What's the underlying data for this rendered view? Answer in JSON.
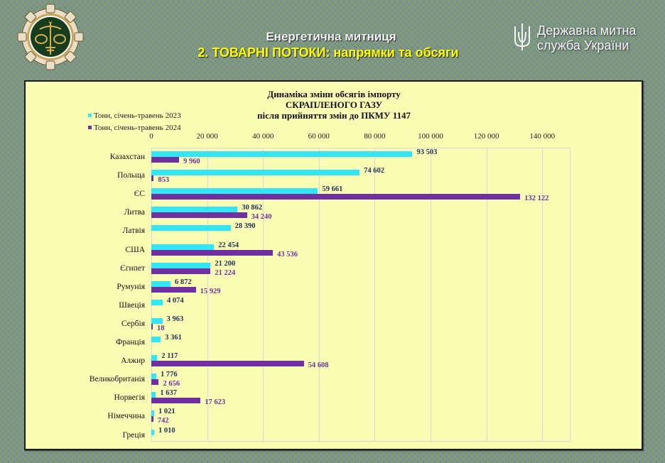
{
  "header": {
    "title_line1": "Енергетична митниця",
    "title_line2": "2. ТОВАРНІ ПОТОКИ: напрямки  та обсяги",
    "agency_line1": "Державна митна",
    "agency_line2": "служба України",
    "emblem_icon": "customs-emblem-icon",
    "trident_icon": "trident-icon"
  },
  "colors": {
    "series_2023": "#33e6f5",
    "series_2024": "#7030a0",
    "label_2023": "#1f2f5a",
    "label_2024": "#7030a0",
    "panel_bg": "#fafdb4",
    "title_yellow": "#ffff00"
  },
  "chart_data": {
    "type": "bar",
    "orientation": "horizontal",
    "title": "Динаміка змінн обсягів імпорту СКРАПЛЕНОГО ГАЗУ після прийняття змін до ПКМУ 1147",
    "title_lines": [
      "Динаміка змінн обсягів імпорту",
      "СКРАПЛЕНОГО ГАЗУ",
      "після прийняття змін до ПКМУ 1147"
    ],
    "xlabel": "",
    "ylabel": "",
    "xlim": [
      0,
      150000
    ],
    "x_ticks": [
      "0",
      "20 000",
      "40 000",
      "60 000",
      "80 000",
      "100 000",
      "120 000",
      "140 000"
    ],
    "x_tick_values": [
      0,
      20000,
      40000,
      60000,
      80000,
      100000,
      120000,
      140000
    ],
    "grid": true,
    "legend_position": "top-left",
    "categories": [
      "Казахстан",
      "Польща",
      "ЄС",
      "Литва",
      "Латвія",
      "США",
      "Єгипет",
      "Румунія",
      "Швеція",
      "Сербія",
      "Франція",
      "Алжир",
      "Великобританія",
      "Норвегія",
      "Німеччина",
      "Греція"
    ],
    "series": [
      {
        "name": "Тонн, січень-травень 2023",
        "values": [
          93503,
          74602,
          59661,
          30862,
          28390,
          22454,
          21200,
          6872,
          4074,
          3963,
          3361,
          2117,
          1776,
          1637,
          1021,
          1010
        ],
        "labels": [
          "93 503",
          "74 602",
          "59 661",
          "30 862",
          "28 390",
          "22 454",
          "21 200",
          "6 872",
          "4 074",
          "3 963",
          "3 361",
          "2 117",
          "1 776",
          "1 637",
          "1 021",
          "1 010"
        ]
      },
      {
        "name": "Тонн, січень-травень 2024",
        "values": [
          9960,
          853,
          132122,
          34240,
          null,
          43536,
          21224,
          15929,
          null,
          18,
          null,
          54608,
          2656,
          17623,
          742,
          null
        ],
        "labels": [
          "9 960",
          "853",
          "132 122",
          "34 240",
          null,
          "43 536",
          "21 224",
          "15 929",
          null,
          "18",
          null,
          "54 608",
          "2 656",
          "17 623",
          "742",
          null
        ]
      }
    ]
  }
}
